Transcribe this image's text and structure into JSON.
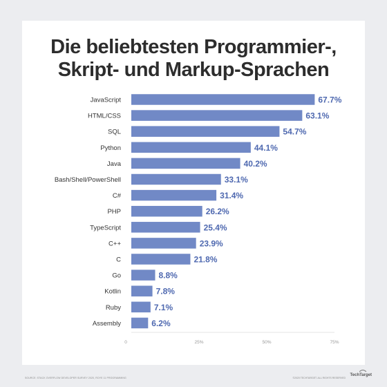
{
  "title_line1": "Die beliebtesten Programmier-,",
  "title_line2": "Skript- und Markup-Sprachen",
  "source": "SOURCE: STACK OVERFLOW DEVELOPER SURVEY 2020, ROYE 11 PROGRAMMING",
  "copyright": "©2020 TECHTARGET. ALL RIGHTS RESERVED",
  "brand": "TechTarget",
  "colors": {
    "bar": "#7189c6",
    "label": "#4f69b0",
    "axis": "#cccccc"
  },
  "chart_data": {
    "type": "bar",
    "orientation": "horizontal",
    "categories": [
      "JavaScript",
      "HTML/CSS",
      "SQL",
      "Python",
      "Java",
      "Bash/Shell/PowerShell",
      "C#",
      "PHP",
      "TypeScript",
      "C++",
      "C",
      "Go",
      "Kotlin",
      "Ruby",
      "Assembly"
    ],
    "values": [
      67.7,
      63.1,
      54.7,
      44.1,
      40.2,
      33.1,
      31.4,
      26.2,
      25.4,
      23.9,
      21.8,
      8.8,
      7.8,
      7.1,
      6.2
    ],
    "value_labels": [
      "67.7%",
      "63.1%",
      "54.7%",
      "44.1%",
      "40.2%",
      "33.1%",
      "31.4%",
      "26.2%",
      "25.4%",
      "23.9%",
      "21.8%",
      "8.8%",
      "7.8%",
      "7.1%",
      "6.2%"
    ],
    "xticks": [
      0,
      25,
      50,
      75
    ],
    "xtick_labels": [
      "0",
      "25%",
      "50%",
      "75%"
    ],
    "xlim": [
      0,
      75
    ],
    "grid": false
  }
}
